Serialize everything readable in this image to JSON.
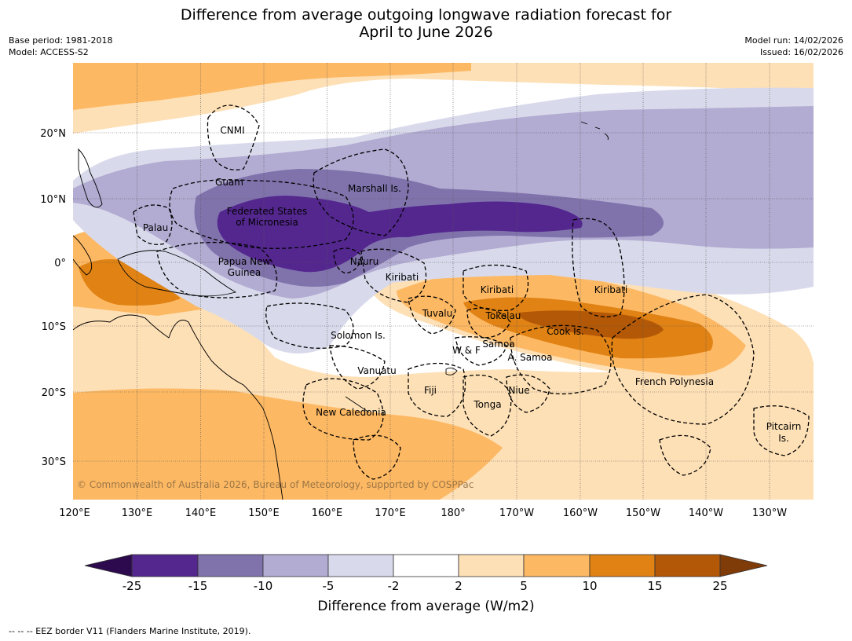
{
  "title": {
    "line1": "Difference from average outgoing longwave radiation forecast for",
    "line2": "April to June 2026"
  },
  "meta": {
    "base_period": "Base period: 1981-2018",
    "model": "Model: ACCESS-S2",
    "model_run": "Model run: 14/02/2026",
    "issued": "Issued: 16/02/2026"
  },
  "axes": {
    "lon_labels": [
      "120°E",
      "130°E",
      "140°E",
      "150°E",
      "160°E",
      "170°E",
      "180°",
      "170°W",
      "160°W",
      "150°W",
      "140°W",
      "130°W"
    ],
    "lat_labels": [
      "20°N",
      "10°N",
      "0°",
      "10°S",
      "20°S",
      "30°S"
    ]
  },
  "places": [
    "CNMI",
    "Guam",
    "Marshall Is.",
    "Federated States",
    "of Micronesia",
    "Palau",
    "Papua New",
    "Guinea",
    "Nauru",
    "Kiribati",
    "Kiribati",
    "Kiribati",
    "Tuvalu",
    "Tokelau",
    "Cook Is.",
    "Solomon Is.",
    "W & F",
    "Samoa",
    "A. Samoa",
    "Vanuatu",
    "Fiji",
    "Niue",
    "Tonga",
    "New Caledonia",
    "French Polynesia",
    "Pitcairn",
    "Is."
  ],
  "copyright": "© Commonwealth of Australia 2026, Bureau of Meteorology, supported by COSPPac",
  "colorbar": {
    "ticks": [
      "-25",
      "-15",
      "-10",
      "-5",
      "-2",
      "2",
      "5",
      "10",
      "15",
      "25"
    ],
    "colors": [
      "#2d0a4e",
      "#54278f",
      "#8073ac",
      "#b2abd2",
      "#d8daeb",
      "#ffffff",
      "#fee0b6",
      "#fdb863",
      "#e08214",
      "#b35806",
      "#7f3b08"
    ],
    "title": "Difference from average (W/m2)"
  },
  "footnote": "--  --  -- EEZ border V11 (Flanders Marine Institute, 2019).",
  "chart_data": {
    "type": "heatmap",
    "title": "Difference from average outgoing longwave radiation forecast for April to June 2026",
    "variable": "Outgoing longwave radiation difference from average",
    "units": "W/m2",
    "lon_range": [
      "120°E",
      "125°W"
    ],
    "lat_range": [
      "35°S",
      "30°N"
    ],
    "levels": [
      -25,
      -15,
      -10,
      -5,
      -2,
      2,
      5,
      10,
      15,
      25
    ],
    "features": [
      {
        "region": "Federated States of Micronesia / Marshall Is. / Nauru (equatorial west Pacific)",
        "range": "-15 to -25"
      },
      {
        "region": "Northern Pacific band near 10°N, east to 150°W",
        "range": "-5 to -15"
      },
      {
        "region": "Northern subtropics 15–25°N (Hawaii)",
        "range": "-2 to -10"
      },
      {
        "region": "Central South Pacific (Kiribati, Tokelau, Cook Is.)",
        "range": "10 to 25"
      },
      {
        "region": "Northern Australia / Coral Sea / New Caledonia",
        "range": "5 to 10"
      },
      {
        "region": "Tasman Sea / southwest Pacific 20–30°S",
        "range": "5 to 10"
      },
      {
        "region": "Papua New Guinea / Arafura Sea",
        "range": "10 to 15"
      }
    ]
  }
}
